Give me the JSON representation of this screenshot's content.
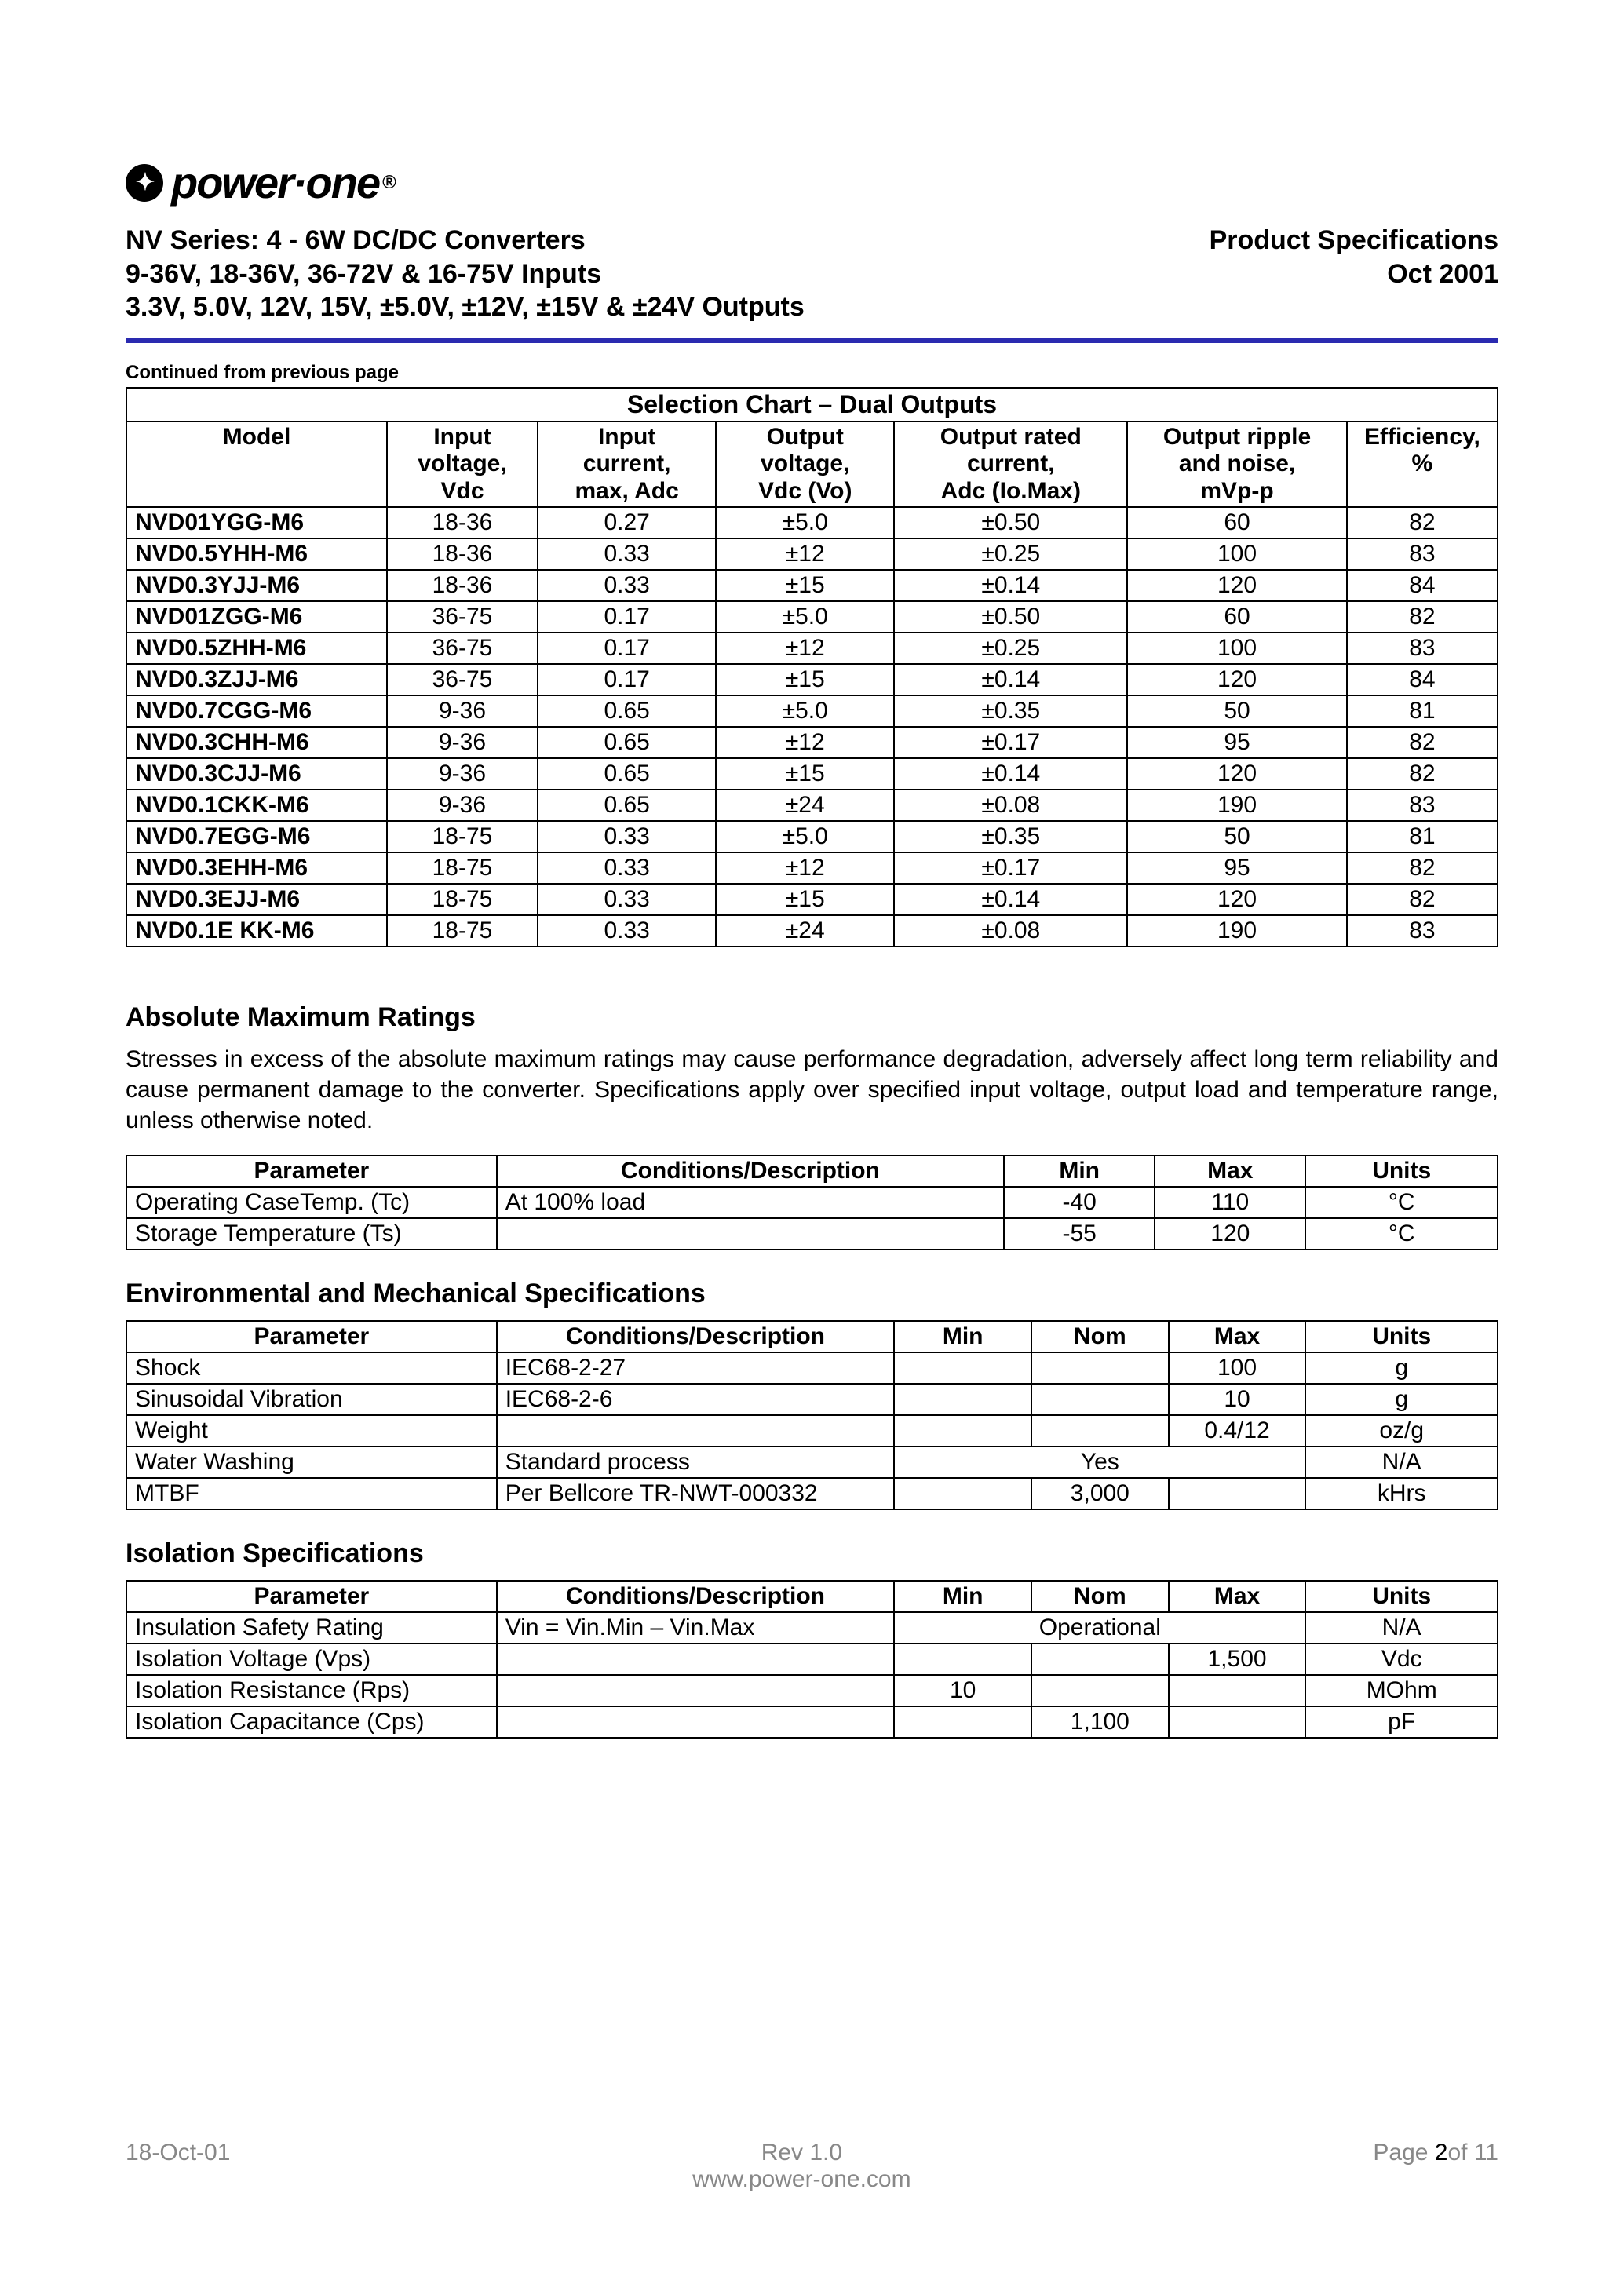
{
  "logo": {
    "text": "power·one",
    "reg": "®"
  },
  "header": {
    "left": [
      "NV Series: 4 - 6W DC/DC Converters",
      "9-36V, 18-36V, 36-72V & 16-75V Inputs",
      "3.3V, 5.0V, 12V, 15V,  ±5.0V, ±12V, ±15V & ±24V Outputs"
    ],
    "right": [
      "Product Specifications",
      "Oct 2001"
    ]
  },
  "continued": "Continued from previous page",
  "selection": {
    "title": "Selection Chart – Dual Outputs",
    "columns": [
      "Model",
      "Input\nvoltage,\nVdc",
      "Input\ncurrent,\nmax, Adc",
      "Output\nvoltage,\nVdc (Vo)",
      "Output rated\ncurrent,\nAdc (Io.Max)",
      "Output ripple\nand noise,\nmVp-p",
      "Efficiency,\n%"
    ],
    "rows": [
      [
        "NVD01YGG-M6",
        "18-36",
        "0.27",
        "±5.0",
        "±0.50",
        "60",
        "82"
      ],
      [
        "NVD0.5YHH-M6",
        "18-36",
        "0.33",
        "±12",
        "±0.25",
        "100",
        "83"
      ],
      [
        "NVD0.3YJJ-M6",
        "18-36",
        "0.33",
        "±15",
        "±0.14",
        "120",
        "84"
      ],
      [
        "NVD01ZGG-M6",
        "36-75",
        "0.17",
        "±5.0",
        "±0.50",
        "60",
        "82"
      ],
      [
        "NVD0.5ZHH-M6",
        "36-75",
        "0.17",
        "±12",
        "±0.25",
        "100",
        "83"
      ],
      [
        "NVD0.3ZJJ-M6",
        "36-75",
        "0.17",
        "±15",
        "±0.14",
        "120",
        "84"
      ],
      [
        "NVD0.7CGG-M6",
        "9-36",
        "0.65",
        "±5.0",
        "±0.35",
        "50",
        "81"
      ],
      [
        "NVD0.3CHH-M6",
        "9-36",
        "0.65",
        "±12",
        "±0.17",
        "95",
        "82"
      ],
      [
        "NVD0.3CJJ-M6",
        "9-36",
        "0.65",
        "±15",
        "±0.14",
        "120",
        "82"
      ],
      [
        "NVD0.1CKK-M6",
        "9-36",
        "0.65",
        "±24",
        "±0.08",
        "190",
        "83"
      ],
      [
        "NVD0.7EGG-M6",
        "18-75",
        "0.33",
        "±5.0",
        "±0.35",
        "50",
        "81"
      ],
      [
        "NVD0.3EHH-M6",
        "18-75",
        "0.33",
        "±12",
        "±0.17",
        "95",
        "82"
      ],
      [
        "NVD0.3EJJ-M6",
        "18-75",
        "0.33",
        "±15",
        "±0.14",
        "120",
        "82"
      ],
      [
        "NVD0.1E KK-M6",
        "18-75",
        "0.33",
        "±24",
        "±0.08",
        "190",
        "83"
      ]
    ]
  },
  "abs": {
    "heading": "Absolute Maximum Ratings",
    "text": "Stresses in excess of the absolute maximum ratings may cause performance degradation, adversely affect long term reliability and cause permanent damage to the converter.  Specifications apply over specified input voltage, output load and temperature range, unless otherwise noted.",
    "columns": [
      "Parameter",
      "Conditions/Description",
      "Min",
      "Max",
      "Units"
    ],
    "rows": [
      [
        "Operating CaseTemp. (Tc)",
        "At 100% load",
        "-40",
        "110",
        "°C"
      ],
      [
        "Storage Temperature (Ts)",
        "",
        "-55",
        "120",
        "°C"
      ]
    ]
  },
  "env": {
    "heading": "Environmental and Mechanical Specifications",
    "columns": [
      "Parameter",
      "Conditions/Description",
      "Min",
      "Nom",
      "Max",
      "Units"
    ],
    "rows": [
      {
        "cells": [
          "Shock",
          "IEC68-2-27",
          "",
          "",
          "100",
          "g"
        ]
      },
      {
        "cells": [
          "Sinusoidal Vibration",
          "IEC68-2-6",
          "",
          "",
          "10",
          "g"
        ]
      },
      {
        "cells": [
          "Weight",
          "",
          "",
          "",
          "0.4/12",
          "oz/g"
        ]
      },
      {
        "cells": [
          "Water Washing",
          "Standard process"
        ],
        "merged": "Yes",
        "units": "N/A"
      },
      {
        "cells": [
          "MTBF",
          "Per Bellcore TR-NWT-000332",
          "",
          "3,000",
          "",
          "kHrs"
        ]
      }
    ]
  },
  "iso": {
    "heading": "Isolation Specifications",
    "columns": [
      "Parameter",
      "Conditions/Description",
      "Min",
      "Nom",
      "Max",
      "Units"
    ],
    "rows": [
      {
        "cells": [
          "Insulation Safety Rating",
          "Vin = Vin.Min – Vin.Max"
        ],
        "merged": "Operational",
        "units": "N/A"
      },
      {
        "cells": [
          "Isolation Voltage (Vps)",
          "",
          "",
          "",
          "1,500",
          "Vdc"
        ]
      },
      {
        "cells": [
          "Isolation Resistance (Rps)",
          "",
          "10",
          "",
          "",
          "MOhm"
        ]
      },
      {
        "cells": [
          "Isolation Capacitance (Cps)",
          "",
          "",
          "1,100",
          "",
          "pF"
        ]
      }
    ]
  },
  "footer": {
    "left": "18-Oct-01",
    "center_top": "Rev 1.0",
    "center_bottom": "www.power-one.com",
    "right_prefix": "Page ",
    "right_page": "2",
    "right_suffix": "of 11"
  },
  "col_widths": {
    "selection": [
      "19%",
      "11%",
      "13%",
      "13%",
      "17%",
      "16%",
      "11%"
    ],
    "abs": [
      "27%",
      "37%",
      "11%",
      "11%",
      "14%"
    ],
    "six": [
      "27%",
      "29%",
      "10%",
      "10%",
      "10%",
      "14%"
    ]
  }
}
